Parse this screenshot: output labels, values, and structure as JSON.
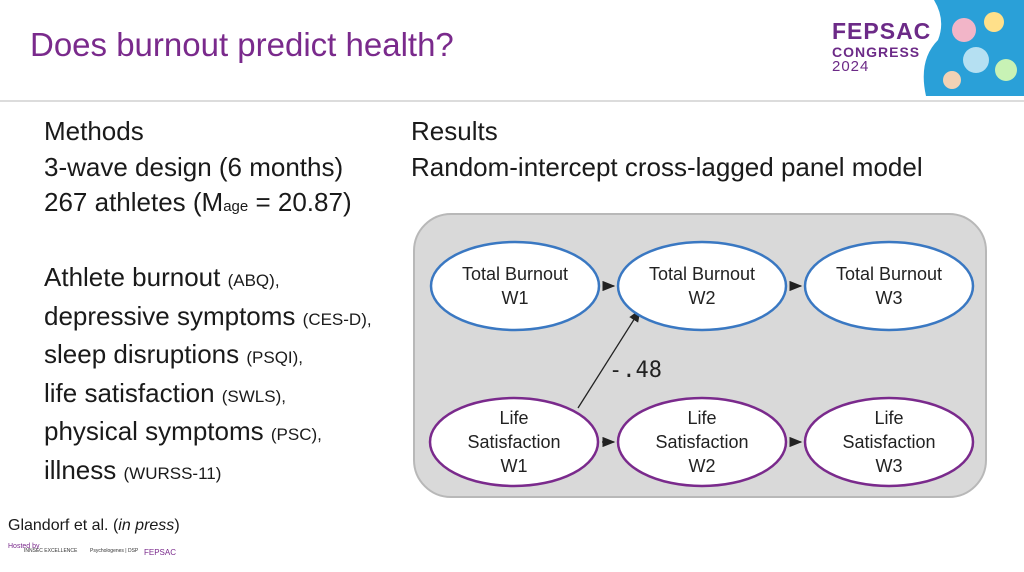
{
  "slide": {
    "title": "Does burnout predict health?"
  },
  "logo": {
    "line1": "FEPSAC",
    "line2": "CONGRESS",
    "line3": "2024"
  },
  "methods": {
    "heading": "Methods",
    "design": "3-wave design (6 months)",
    "sample_prefix": "267 athletes (M",
    "sample_sub": "age",
    "sample_suffix": " = 20.87)",
    "measures": [
      {
        "name": "Athlete burnout",
        "code": "(ABQ),"
      },
      {
        "name": "depressive symptoms",
        "code": "(CES-D),"
      },
      {
        "name": "sleep disruptions",
        "code": "(PSQI),"
      },
      {
        "name": "life satisfaction",
        "code": "(SWLS),"
      },
      {
        "name": "physical symptoms",
        "code": "(PSC),"
      },
      {
        "name": "illness",
        "code": "(WURSS-11)"
      }
    ]
  },
  "results": {
    "heading": "Results",
    "model": "Random-intercept cross-lagged panel model"
  },
  "diagram": {
    "nodes": [
      {
        "id": "burnout_w1",
        "lines": [
          "Total Burnout",
          "W1"
        ],
        "color": "#3a78c2"
      },
      {
        "id": "burnout_w2",
        "lines": [
          "Total Burnout",
          "W2"
        ],
        "color": "#3a78c2"
      },
      {
        "id": "burnout_w3",
        "lines": [
          "Total Burnout",
          "W3"
        ],
        "color": "#3a78c2"
      },
      {
        "id": "ls_w1",
        "lines": [
          "Life",
          "Satisfaction",
          "W1"
        ],
        "color": "#7a2a8c"
      },
      {
        "id": "ls_w2",
        "lines": [
          "Life",
          "Satisfaction",
          "W2"
        ],
        "color": "#7a2a8c"
      },
      {
        "id": "ls_w3",
        "lines": [
          "Life",
          "Satisfaction",
          "W3"
        ],
        "color": "#7a2a8c"
      }
    ],
    "edges": [
      {
        "from": "burnout_w1",
        "to": "burnout_w2",
        "label": ""
      },
      {
        "from": "burnout_w2",
        "to": "burnout_w3",
        "label": ""
      },
      {
        "from": "ls_w1",
        "to": "ls_w2",
        "label": ""
      },
      {
        "from": "ls_w2",
        "to": "ls_w3",
        "label": ""
      },
      {
        "from": "ls_w1",
        "to": "burnout_w2",
        "label": "-.48"
      }
    ]
  },
  "footer": {
    "citation_prefix": "Glandorf et al. (",
    "citation_italic": "in press",
    "citation_suffix": ")",
    "hosted_by": "Hosted by",
    "sponsor1": "INNSEC EXCELLENCE",
    "sponsor2": "Psychologenes | DSP",
    "sponsor3": "FEPSAC"
  }
}
